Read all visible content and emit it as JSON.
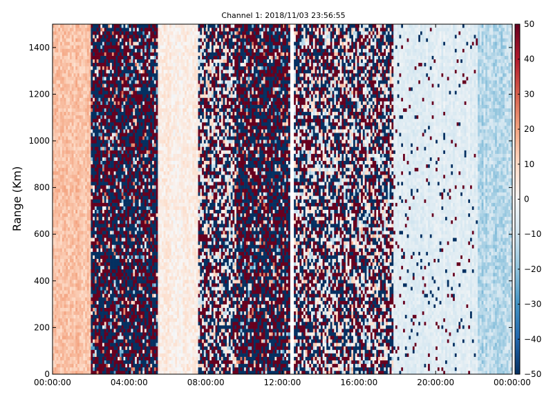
{
  "chart_data": {
    "type": "heatmap",
    "title": "Channel 1: 2018/11/03 23:56:55",
    "xlabel": "",
    "ylabel": "Range (Km)",
    "x_ticks": [
      "00:00:00",
      "04:00:00",
      "08:00:00",
      "12:00:00",
      "16:00:00",
      "20:00:00",
      "00:00:00"
    ],
    "x_tick_hours": [
      0,
      4,
      8,
      12,
      16,
      20,
      24
    ],
    "xlim_hours": [
      0,
      24
    ],
    "y_ticks": [
      "0",
      "200",
      "400",
      "600",
      "800",
      "1000",
      "1200",
      "1400"
    ],
    "y_tick_values": [
      0,
      200,
      400,
      600,
      800,
      1000,
      1200,
      1400
    ],
    "ylim": [
      0,
      1500
    ],
    "colorbar": {
      "colormap": "RdBu_r",
      "vmin": -50,
      "vmax": 50,
      "ticks": [
        "50",
        "40",
        "30",
        "20",
        "10",
        "0",
        "−10",
        "−20",
        "−30",
        "−40",
        "−50"
      ],
      "tick_values": [
        50,
        40,
        30,
        20,
        10,
        0,
        -10,
        -20,
        -30,
        -40,
        -50
      ]
    },
    "grid": false,
    "regimes": [
      {
        "start_hour": 0.0,
        "end_hour": 2.0,
        "pattern": "warm",
        "mean": 14,
        "spread": 6
      },
      {
        "start_hour": 2.0,
        "end_hour": 5.5,
        "pattern": "saturated",
        "mean": 0,
        "spread": 50
      },
      {
        "start_hour": 5.5,
        "end_hour": 7.6,
        "pattern": "weak",
        "mean": 4,
        "spread": 6
      },
      {
        "start_hour": 7.6,
        "end_hour": 9.6,
        "pattern": "mixed",
        "mean": 0,
        "spread": 35
      },
      {
        "start_hour": 9.6,
        "end_hour": 12.4,
        "pattern": "saturated",
        "mean": 0,
        "spread": 50
      },
      {
        "start_hour": 12.4,
        "end_hour": 12.6,
        "pattern": "gap",
        "mean": 0,
        "spread": 0
      },
      {
        "start_hour": 12.6,
        "end_hour": 17.8,
        "pattern": "mixed",
        "mean": 0,
        "spread": 45
      },
      {
        "start_hour": 17.8,
        "end_hour": 22.2,
        "pattern": "sparse",
        "mean": -6,
        "spread": 6
      },
      {
        "start_hour": 22.2,
        "end_hour": 24.0,
        "pattern": "cool",
        "mean": -14,
        "spread": 8
      }
    ]
  }
}
